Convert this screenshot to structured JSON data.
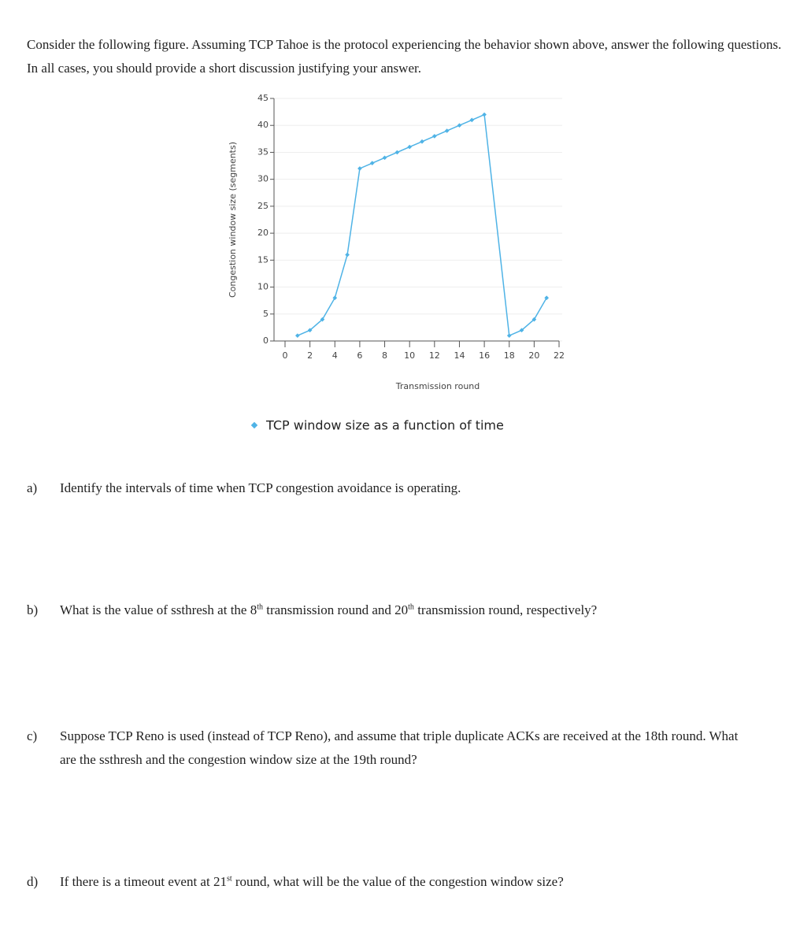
{
  "intro": "Consider the following figure. Assuming TCP Tahoe is the protocol experiencing the behavior shown above, answer the following questions. In all cases, you should provide a short discussion justifying your answer.",
  "chart_data": {
    "type": "line",
    "x": [
      1,
      2,
      3,
      4,
      5,
      6,
      7,
      8,
      9,
      10,
      11,
      12,
      13,
      14,
      15,
      16,
      18,
      19,
      20,
      21
    ],
    "values": [
      1,
      2,
      4,
      8,
      16,
      32,
      33,
      34,
      35,
      36,
      37,
      38,
      39,
      40,
      41,
      42,
      1,
      2,
      4,
      8
    ],
    "color": "#4fb3e6",
    "xlim": [
      0,
      22
    ],
    "xticks": [
      0,
      2,
      4,
      6,
      8,
      10,
      12,
      14,
      16,
      18,
      20,
      22
    ],
    "ylim": [
      0,
      45
    ],
    "yticks": [
      0,
      5,
      10,
      15,
      20,
      25,
      30,
      35,
      40,
      45
    ],
    "grid": true,
    "xlabel": "Transmission round",
    "ylabel": "Congestion window size (segments)",
    "caption": "TCP window size as a function of time"
  },
  "questions": [
    {
      "label": "a)",
      "parts": [
        "Identify the intervals of time when TCP congestion avoidance is operating."
      ]
    },
    {
      "label": "b)",
      "parts": [
        "What is the value of ssthresh at the 8",
        "th",
        " transmission round and 20",
        "th",
        " transmission round, respectively?"
      ]
    },
    {
      "label": "c)",
      "parts": [
        "Suppose TCP Reno is used (instead of TCP Reno), and assume that triple duplicate ACKs are received at the 18th round. What are the ssthresh and the congestion window size at the 19th round?"
      ]
    },
    {
      "label": "d)",
      "parts": [
        "If there is a timeout event at 21",
        "st",
        " round, what will be the value of the congestion window size?"
      ]
    }
  ]
}
